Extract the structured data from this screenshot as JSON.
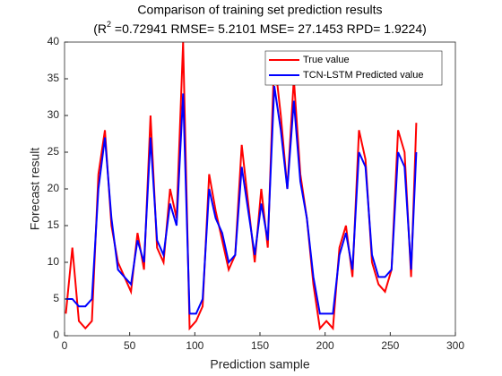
{
  "chart_data": {
    "type": "line",
    "title": "Comparison of training set prediction results",
    "subtitle": {
      "prefix": "(R",
      "superscript": "2",
      "rest": " =0.72941 RMSE= 5.2101 MSE= 27.1453 RPD= 1.9224)"
    },
    "x_label": "Prediction sample",
    "y_label": "Forecast result",
    "x": [
      1,
      6,
      11,
      16,
      21,
      26,
      31,
      36,
      41,
      46,
      51,
      56,
      61,
      66,
      71,
      76,
      81,
      86,
      91,
      96,
      101,
      106,
      111,
      116,
      121,
      126,
      131,
      136,
      141,
      146,
      151,
      156,
      161,
      166,
      171,
      176,
      181,
      186,
      191,
      196,
      201,
      206,
      211,
      216,
      221,
      226,
      231,
      236,
      241,
      246,
      251,
      256,
      261,
      266,
      270
    ],
    "series": [
      {
        "name": "True value",
        "color": "#ff0000",
        "values": [
          3,
          12,
          2,
          1,
          2,
          22,
          28,
          15,
          10,
          8,
          6,
          14,
          9,
          30,
          12,
          10,
          20,
          16,
          40,
          1,
          2,
          4,
          22,
          17,
          13,
          9,
          11,
          26,
          18,
          10,
          20,
          12,
          38,
          30,
          20,
          35,
          22,
          16,
          7,
          1,
          2,
          1,
          12,
          15,
          8,
          28,
          24,
          10,
          7,
          6,
          9,
          28,
          25,
          8,
          29
        ]
      },
      {
        "name": "TCN-LSTM Predicted value",
        "color": "#0000ff",
        "values": [
          5,
          5,
          4,
          4,
          5,
          20,
          27,
          16,
          9,
          8,
          7,
          13,
          10,
          27,
          13,
          11,
          18,
          15,
          33,
          3,
          3,
          5,
          20,
          16,
          14,
          10,
          11,
          23,
          17,
          11,
          18,
          13,
          34,
          28,
          20,
          32,
          21,
          16,
          8,
          3,
          3,
          3,
          11,
          14,
          9,
          25,
          23,
          11,
          8,
          8,
          9,
          25,
          23,
          9,
          25
        ]
      }
    ],
    "xlim": [
      0,
      300
    ],
    "ylim": [
      0,
      40
    ],
    "xticks": [
      0,
      50,
      100,
      150,
      200,
      250,
      300
    ],
    "yticks": [
      0,
      5,
      10,
      15,
      20,
      25,
      30,
      35,
      40
    ],
    "grid": false,
    "legend": "top-right"
  }
}
